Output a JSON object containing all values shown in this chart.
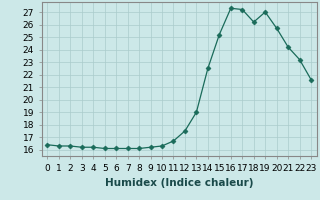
{
  "x": [
    0,
    1,
    2,
    3,
    4,
    5,
    6,
    7,
    8,
    9,
    10,
    11,
    12,
    13,
    14,
    15,
    16,
    17,
    18,
    19,
    20,
    21,
    22,
    23
  ],
  "y": [
    16.4,
    16.3,
    16.3,
    16.2,
    16.2,
    16.1,
    16.1,
    16.1,
    16.1,
    16.2,
    16.3,
    16.7,
    17.5,
    19.0,
    22.5,
    25.2,
    27.3,
    27.2,
    26.2,
    27.0,
    25.7,
    24.2,
    23.2,
    21.6
  ],
  "line_color": "#1a6b5a",
  "marker": "D",
  "marker_size": 2.5,
  "bg_color": "#cce8e8",
  "grid_color": "#aacccc",
  "xlabel": "Humidex (Indice chaleur)",
  "ylim": [
    15.5,
    27.8
  ],
  "xlim": [
    -0.5,
    23.5
  ],
  "yticks": [
    16,
    17,
    18,
    19,
    20,
    21,
    22,
    23,
    24,
    25,
    26,
    27
  ],
  "xtick_labels": [
    "0",
    "1",
    "2",
    "3",
    "4",
    "5",
    "6",
    "7",
    "8",
    "9",
    "10",
    "11",
    "12",
    "13",
    "14",
    "15",
    "16",
    "17",
    "18",
    "19",
    "20",
    "21",
    "22",
    "23"
  ],
  "font_size": 6.5,
  "xlabel_fontsize": 7.5
}
